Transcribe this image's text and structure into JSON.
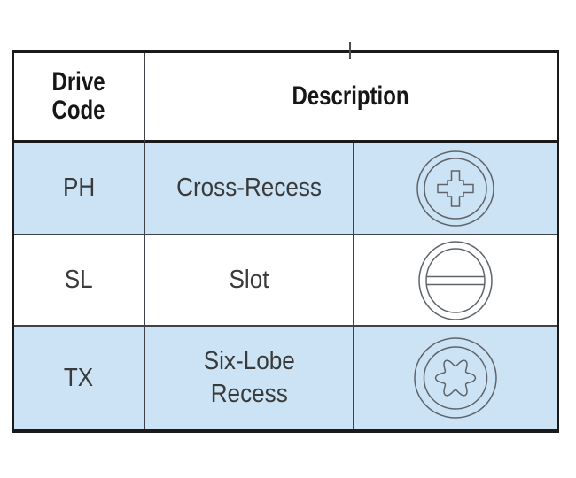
{
  "header": {
    "drive_code": "Drive\nCode",
    "description": "Description"
  },
  "rows": [
    {
      "code": "PH",
      "description": "Cross-Recess",
      "icon": "phillips-cross-recess-icon",
      "highlighted": true
    },
    {
      "code": "SL",
      "description": "Slot",
      "icon": "slot-icon",
      "highlighted": false
    },
    {
      "code": "TX",
      "description": "Six-Lobe\nRecess",
      "icon": "six-lobe-recess-icon",
      "highlighted": true
    }
  ],
  "colors": {
    "highlight_row_bg": "#cbe3f4",
    "outer_border": "#1a1a1a",
    "grid_line": "#3f444a",
    "header_text": "#161616",
    "body_text": "#3a3a3a",
    "icon_stroke": "#5f646a"
  }
}
